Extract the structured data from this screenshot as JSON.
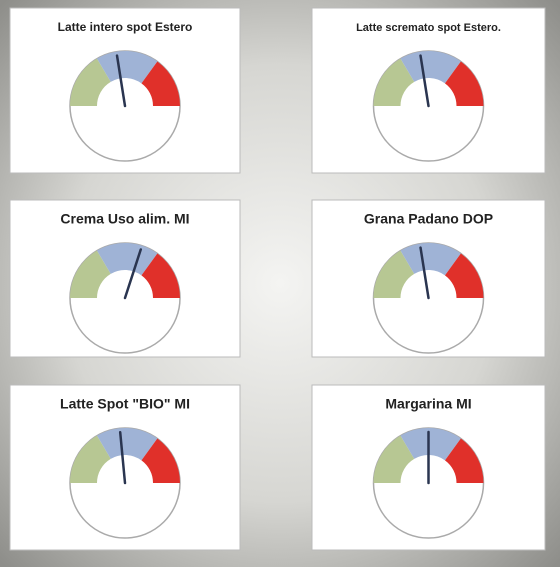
{
  "chart_data": [
    {
      "type": "gauge",
      "title": "Latte intero spot Estero",
      "value": 45,
      "ylim": [
        0,
        100
      ],
      "bands": [
        {
          "color": "#b7c793",
          "from": 0,
          "to": 33
        },
        {
          "color": "#9fb3d6",
          "from": 33,
          "to": 70
        },
        {
          "color": "#e0302a",
          "from": 70,
          "to": 100
        }
      ]
    },
    {
      "type": "gauge",
      "title": "Latte scremato spot Estero.",
      "value": 45,
      "ylim": [
        0,
        100
      ],
      "bands": [
        {
          "color": "#b7c793",
          "from": 0,
          "to": 33
        },
        {
          "color": "#9fb3d6",
          "from": 33,
          "to": 70
        },
        {
          "color": "#e0302a",
          "from": 70,
          "to": 100
        }
      ]
    },
    {
      "type": "gauge",
      "title": "Crema Uso alim. MI",
      "value": 60,
      "ylim": [
        0,
        100
      ],
      "bands": [
        {
          "color": "#b7c793",
          "from": 0,
          "to": 33
        },
        {
          "color": "#9fb3d6",
          "from": 33,
          "to": 70
        },
        {
          "color": "#e0302a",
          "from": 70,
          "to": 100
        }
      ]
    },
    {
      "type": "gauge",
      "title": "Grana Padano DOP",
      "value": 45,
      "ylim": [
        0,
        100
      ],
      "bands": [
        {
          "color": "#b7c793",
          "from": 0,
          "to": 33
        },
        {
          "color": "#9fb3d6",
          "from": 33,
          "to": 70
        },
        {
          "color": "#e0302a",
          "from": 70,
          "to": 100
        }
      ]
    },
    {
      "type": "gauge",
      "title": "Latte Spot \"BIO\" MI",
      "value": 47,
      "ylim": [
        0,
        100
      ],
      "bands": [
        {
          "color": "#b7c793",
          "from": 0,
          "to": 33
        },
        {
          "color": "#9fb3d6",
          "from": 33,
          "to": 70
        },
        {
          "color": "#e0302a",
          "from": 70,
          "to": 100
        }
      ]
    },
    {
      "type": "gauge",
      "title": "Margarina MI",
      "value": 50,
      "ylim": [
        0,
        100
      ],
      "bands": [
        {
          "color": "#b7c793",
          "from": 0,
          "to": 33
        },
        {
          "color": "#9fb3d6",
          "from": 33,
          "to": 70
        },
        {
          "color": "#e0302a",
          "from": 70,
          "to": 100
        }
      ]
    }
  ]
}
